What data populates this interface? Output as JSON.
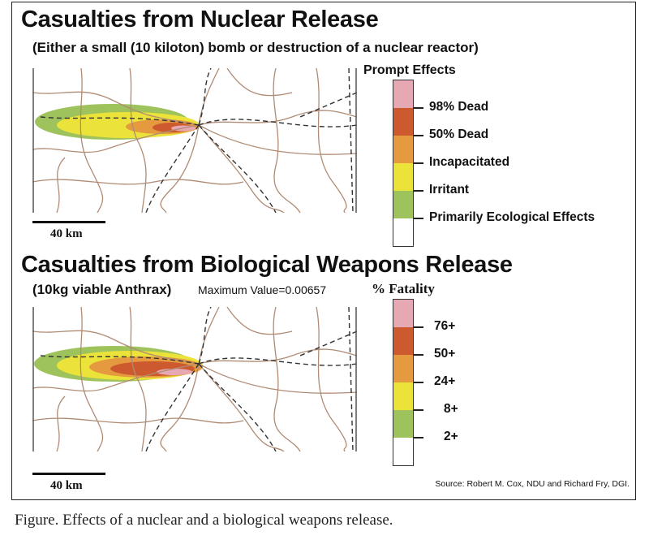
{
  "panels": [
    {
      "title": "Casualties from Nuclear Release",
      "subtitle": "(Either a small (10 kiloton) bomb or destruction of a nuclear reactor)",
      "subtitle_extra": "",
      "legend_title": "Prompt Effects",
      "legend": [
        {
          "label": "",
          "color": "#e6a9b3"
        },
        {
          "label": "98% Dead",
          "color": "#cc5a2e"
        },
        {
          "label": "50% Dead",
          "color": "#e69a3f"
        },
        {
          "label": "Incapacitated",
          "color": "#ece33a"
        },
        {
          "label": "Irritant",
          "color": "#9ec25c"
        },
        {
          "label": "Primarily Ecological Effects",
          "color": "#ffffff"
        }
      ],
      "scale_label": "40 km"
    },
    {
      "title": "Casualties from Biological Weapons Release",
      "subtitle": "(10kg viable Anthrax)",
      "subtitle_extra": "Maximum Value=0.00657",
      "legend_title": "% Fatality",
      "legend": [
        {
          "label": "",
          "color": "#e6a9b3"
        },
        {
          "label": "76+",
          "color": "#cc5a2e"
        },
        {
          "label": "50+",
          "color": "#e69a3f"
        },
        {
          "label": "24+",
          "color": "#ece33a"
        },
        {
          "label": "8+",
          "color": "#9ec25c"
        },
        {
          "label": "2+",
          "color": "#ffffff"
        }
      ],
      "scale_label": "40 km"
    }
  ],
  "source": "Source: Robert M. Cox, NDU and Richard Fry, DGI.",
  "caption": "Figure. Effects of a nuclear and a biological weapons release.",
  "colors": {
    "roads": "#b08b74",
    "rail": "#333333",
    "plume_outer": "#9ec25c",
    "plume_mid": "#ece33a",
    "plume_inner": "#e69a3f",
    "plume_core": "#cc5a2e",
    "plume_center": "#e6a9b3"
  }
}
